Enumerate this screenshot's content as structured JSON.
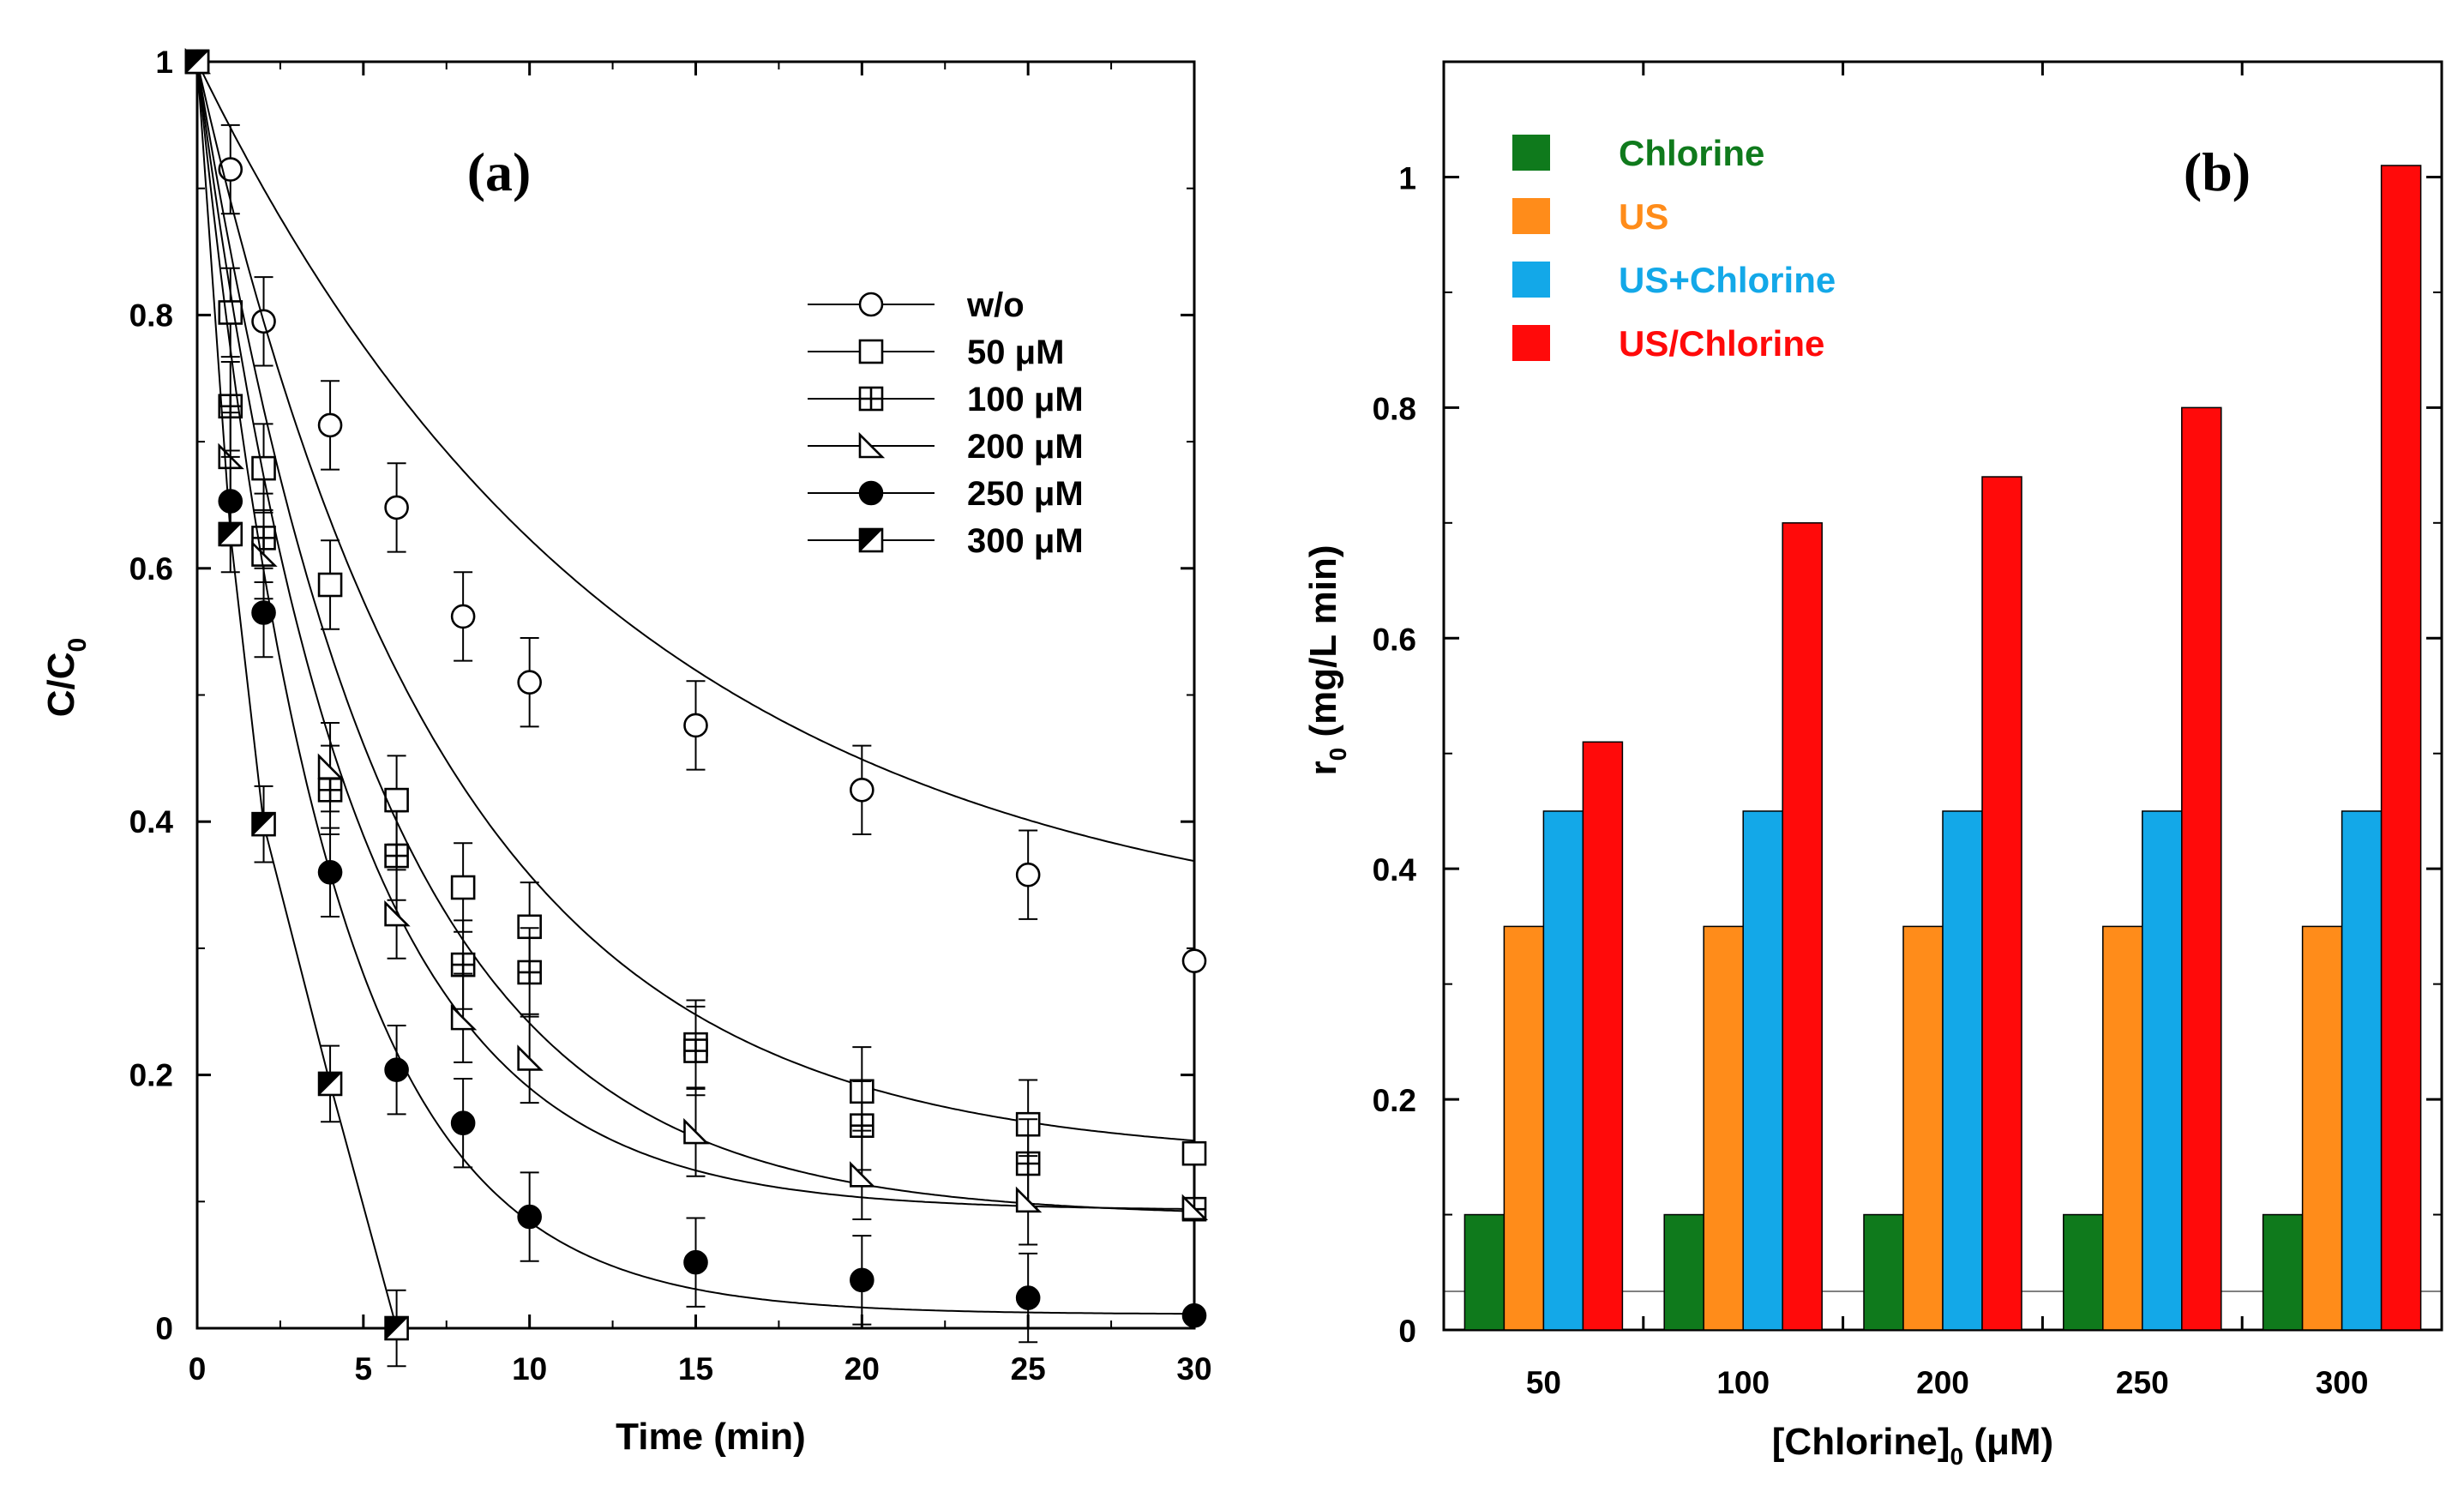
{
  "colors": {
    "chlorine": "#0f7a1c",
    "us": "#ff8c1a",
    "us_plus_chlorine": "#13a8e8",
    "us_slash_chlorine": "#ff0a0a",
    "axis": "#000000"
  },
  "chart_data": [
    {
      "type": "scatter",
      "panel_label": "(a)",
      "xlabel": "Time (min)",
      "ylabel": "C/C0",
      "ylabel_main": "C/C",
      "ylabel_sub": "0",
      "xlim": [
        0,
        30
      ],
      "ylim": [
        0,
        1
      ],
      "xticks": [
        0,
        5,
        10,
        15,
        20,
        25,
        30
      ],
      "xtick_labels": [
        "0",
        "5",
        "10",
        "15",
        "20",
        "25",
        "30"
      ],
      "yticks": [
        0,
        0.2,
        0.4,
        0.6,
        0.8,
        1
      ],
      "ytick_labels": [
        "0",
        "0.2",
        "0.4",
        "0.6",
        "0.8",
        "1"
      ],
      "legend_position": "top-right",
      "fit_lines": true,
      "series": [
        {
          "name": "w/o",
          "marker": "circle-open",
          "x": [
            0,
            1,
            2,
            4,
            6,
            8,
            10,
            15,
            20,
            25,
            30
          ],
          "y": [
            1.0,
            0.915,
            0.795,
            0.713,
            0.648,
            0.562,
            0.51,
            0.476,
            0.425,
            0.358,
            0.29
          ],
          "error": [
            0,
            0.035,
            0.035,
            0.035,
            0.035,
            0.035,
            0.035,
            0.035,
            0.035,
            0.035,
            0
          ],
          "fit_k": 0.0773,
          "fit_plateau": 0.3
        },
        {
          "name": "50 μM",
          "marker": "square-open",
          "x": [
            0,
            1,
            2,
            4,
            6,
            8,
            10,
            15,
            20,
            25,
            30
          ],
          "y": [
            1.0,
            0.802,
            0.679,
            0.587,
            0.417,
            0.348,
            0.317,
            0.224,
            0.187,
            0.161,
            0.138
          ],
          "error": [
            0,
            0.035,
            0.035,
            0.035,
            0.035,
            0.035,
            0.035,
            0.035,
            0.035,
            0.035,
            0
          ],
          "fit_k": 0.1349,
          "fit_plateau": 0.133
        },
        {
          "name": "100 μM",
          "marker": "square-plus",
          "x": [
            0,
            1,
            2,
            4,
            6,
            8,
            10,
            15,
            20,
            25,
            30
          ],
          "y": [
            1.0,
            0.728,
            0.624,
            0.425,
            0.373,
            0.287,
            0.281,
            0.219,
            0.16,
            0.13,
            0.094
          ],
          "error": [
            0,
            0.035,
            0.035,
            0.035,
            0.035,
            0.035,
            0.035,
            0.035,
            0.035,
            0.035,
            0
          ],
          "fit_k": 0.1786,
          "fit_plateau": 0.088
        },
        {
          "name": "200 μM",
          "marker": "triangle-open",
          "x": [
            0,
            1,
            2,
            4,
            6,
            8,
            10,
            15,
            20,
            25,
            30
          ],
          "y": [
            1.0,
            0.688,
            0.611,
            0.443,
            0.327,
            0.245,
            0.213,
            0.155,
            0.121,
            0.101,
            0.095
          ],
          "error": [
            0,
            0.035,
            0.035,
            0.035,
            0.035,
            0.035,
            0.035,
            0.035,
            0.035,
            0.035,
            0
          ],
          "fit_k": 0.2238,
          "fit_plateau": 0.093
        },
        {
          "name": "250 μM",
          "marker": "circle-filled",
          "x": [
            0,
            1,
            2,
            4,
            6,
            8,
            10,
            15,
            20,
            25,
            30
          ],
          "y": [
            1.0,
            0.653,
            0.565,
            0.36,
            0.204,
            0.162,
            0.088,
            0.052,
            0.038,
            0.024,
            0.01
          ],
          "error": [
            0,
            0.035,
            0.035,
            0.035,
            0.035,
            0.035,
            0.035,
            0.035,
            0.035,
            0.035,
            0
          ],
          "fit_k": 0.2606,
          "fit_plateau": 0.011
        },
        {
          "name": "300 μM",
          "marker": "square-half",
          "x": [
            0,
            1,
            2,
            4,
            6
          ],
          "y": [
            1.0,
            0.627,
            0.398,
            0.193,
            0.0
          ],
          "error": [
            0,
            0.03,
            0.03,
            0.03,
            0.03
          ],
          "fit": "polyline"
        }
      ]
    },
    {
      "type": "bar",
      "panel_label": "(b)",
      "xlabel": "[Chlorine]0 (μM)",
      "xlabel_main": "[Chlorine]",
      "xlabel_sub": "0",
      "xlabel_tail": " (μM)",
      "ylabel": "r0 (mg/L min)",
      "ylabel_main": "r",
      "ylabel_sub": "0",
      "ylabel_tail": " (mg/L min)",
      "ylim": [
        0,
        1.1
      ],
      "yticks": [
        0,
        0.2,
        0.4,
        0.6,
        0.8,
        1
      ],
      "ytick_labels": [
        "0",
        "0.2",
        "0.4",
        "0.6",
        "0.8",
        "1"
      ],
      "legend_position": "top-left",
      "categories": [
        "50",
        "100",
        "200",
        "250",
        "300"
      ],
      "series": [
        {
          "name": "Chlorine",
          "color_key": "chlorine",
          "values": [
            0.1,
            0.1,
            0.1,
            0.1,
            0.1
          ]
        },
        {
          "name": "US",
          "color_key": "us",
          "values": [
            0.35,
            0.35,
            0.35,
            0.35,
            0.35
          ]
        },
        {
          "name": "US+Chlorine",
          "color_key": "us_plus_chlorine",
          "values": [
            0.45,
            0.45,
            0.45,
            0.45,
            0.45
          ]
        },
        {
          "name": "US/Chlorine",
          "color_key": "us_slash_chlorine",
          "values": [
            0.51,
            0.7,
            0.74,
            0.8,
            1.01
          ]
        }
      ]
    }
  ]
}
